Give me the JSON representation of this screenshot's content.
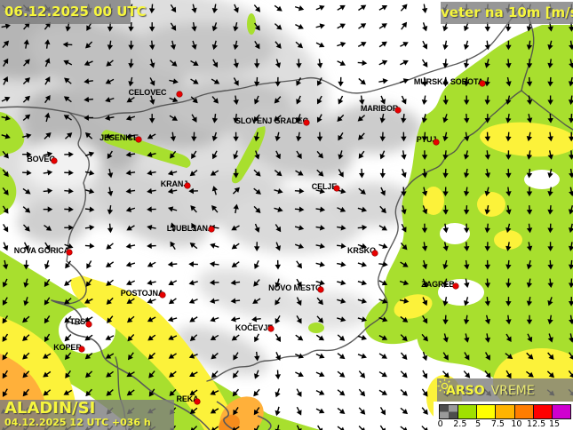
{
  "header": {
    "timestamp": "06.12.2025 00 UTC",
    "title": "veter na 10m [m/s]"
  },
  "footer": {
    "model": "ALADIN/SI",
    "run_info": "04.12.2025 12 UTC +036 h"
  },
  "branding": {
    "org": "ARSO",
    "product": "VREME"
  },
  "legend": {
    "ticks": [
      "0",
      "2.5",
      "5",
      "7.5",
      "10",
      "12.5",
      "15"
    ],
    "colors": [
      "checker",
      "#a0e000",
      "#ffff00",
      "#ffb400",
      "#ff7d00",
      "#ff0000",
      "#cf00cf"
    ]
  },
  "colors": {
    "label_yellow": "#f6f63e",
    "overlay_bg": "rgba(125,125,125,0.8)",
    "city_dot": "#e80000",
    "city_dot_edge": "#8a0000",
    "border": "#4e4e4e",
    "arrow": "#000000",
    "wind_green": "#a8df2e",
    "wind_yellow": "#fcf23a",
    "wind_orange": "#ffb03a",
    "wind_orange_deep": "#f78c1c",
    "checker_dark": "#4d4d4d",
    "checker_light": "#9a9a9a"
  },
  "cities": [
    {
      "name": "CELOVEC",
      "dot": [
        202,
        106
      ],
      "label": [
        166,
        104
      ]
    },
    {
      "name": "MURSKA SOBOTA",
      "dot": [
        543,
        94
      ],
      "label": [
        505,
        92
      ]
    },
    {
      "name": "SLOVENJ GRADEC",
      "dot": [
        345,
        138
      ],
      "label": [
        306,
        136
      ]
    },
    {
      "name": "MARIBOR",
      "dot": [
        448,
        124
      ],
      "label": [
        427,
        122
      ]
    },
    {
      "name": "JESENICE",
      "dot": [
        156,
        157
      ],
      "label": [
        134,
        155
      ]
    },
    {
      "name": "PTUJ",
      "dot": [
        491,
        160
      ],
      "label": [
        480,
        157
      ]
    },
    {
      "name": "BOVEC",
      "dot": [
        61,
        181
      ],
      "label": [
        46,
        179
      ]
    },
    {
      "name": "KRANJ",
      "dot": [
        211,
        209
      ],
      "label": [
        196,
        207
      ]
    },
    {
      "name": "CELJE",
      "dot": [
        379,
        212
      ],
      "label": [
        365,
        210
      ]
    },
    {
      "name": "LJUBLJANA",
      "dot": [
        238,
        258
      ],
      "label": [
        214,
        257
      ]
    },
    {
      "name": "NOVA GORICA",
      "dot": [
        78,
        284
      ],
      "label": [
        47,
        282
      ]
    },
    {
      "name": "KRŠKO",
      "dot": [
        422,
        285
      ],
      "label": [
        407,
        282
      ]
    },
    {
      "name": "NOVO MESTO",
      "dot": [
        361,
        326
      ],
      "label": [
        332,
        324
      ]
    },
    {
      "name": "ZAGREB",
      "dot": [
        513,
        322
      ],
      "label": [
        493,
        320
      ]
    },
    {
      "name": "POSTOJNA",
      "dot": [
        183,
        332
      ],
      "label": [
        160,
        330
      ]
    },
    {
      "name": "KOČEVJE",
      "dot": [
        305,
        370
      ],
      "label": [
        286,
        369
      ]
    },
    {
      "name": "TRST",
      "dot": [
        100,
        365
      ],
      "label": [
        90,
        362
      ]
    },
    {
      "name": "KOPER",
      "dot": [
        92,
        393
      ],
      "label": [
        76,
        391
      ]
    },
    {
      "name": "REKA",
      "dot": [
        222,
        452
      ],
      "label": [
        211,
        449
      ]
    }
  ],
  "wind_field": {
    "note": "coarse grid of arrow directions, degrees clockwise from east(right), rows top to bottom",
    "dirs_deg": [
      [
        70,
        60,
        80,
        100,
        60,
        90,
        45,
        350,
        320,
        315,
        110,
        100,
        95,
        95
      ],
      [
        310,
        280,
        120,
        90,
        70,
        120,
        60,
        20,
        330,
        310,
        100,
        95,
        95,
        90
      ],
      [
        290,
        320,
        170,
        110,
        0,
        40,
        90,
        130,
        60,
        320,
        100,
        90,
        90,
        90
      ],
      [
        30,
        280,
        185,
        150,
        30,
        90,
        140,
        120,
        135,
        100,
        95,
        90,
        90,
        90
      ],
      [
        45,
        350,
        355,
        170,
        140,
        110,
        70,
        40,
        130,
        90,
        90,
        90,
        90,
        90
      ],
      [
        55,
        5,
        10,
        180,
        160,
        270,
        30,
        350,
        30,
        70,
        95,
        90,
        90,
        90
      ],
      [
        70,
        30,
        350,
        160,
        270,
        180,
        60,
        20,
        350,
        50,
        90,
        90,
        90,
        95
      ],
      [
        95,
        120,
        140,
        155,
        165,
        175,
        120,
        30,
        10,
        20,
        95,
        90,
        90,
        95
      ],
      [
        115,
        130,
        140,
        145,
        155,
        165,
        170,
        50,
        20,
        10,
        100,
        95,
        95,
        100
      ],
      [
        125,
        135,
        140,
        140,
        145,
        150,
        60,
        20,
        30,
        40,
        70,
        55,
        50,
        45
      ],
      [
        130,
        135,
        140,
        135,
        140,
        145,
        130,
        30,
        40,
        45,
        55,
        45,
        45,
        45
      ],
      [
        135,
        135,
        140,
        135,
        140,
        140,
        125,
        45,
        45,
        50,
        50,
        45,
        45,
        45
      ]
    ]
  }
}
